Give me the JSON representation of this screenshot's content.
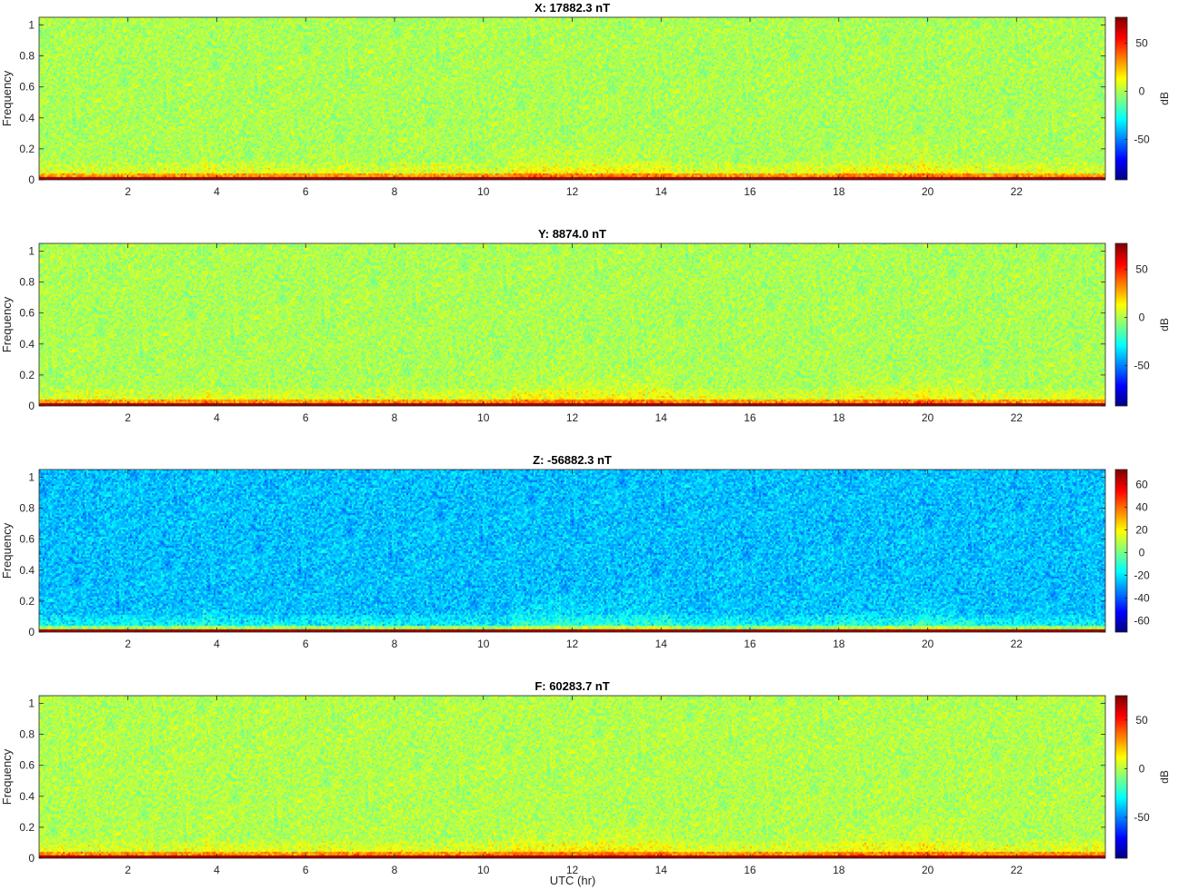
{
  "figure": {
    "xlabel": "UTC (hr)"
  },
  "chart_data": [
    {
      "type": "heatmap",
      "title": "X: 17882.3 nT",
      "ylabel": "Frequency",
      "colorbar_label": "dB",
      "x_ticks": [
        2,
        4,
        6,
        8,
        10,
        12,
        14,
        16,
        18,
        20,
        22
      ],
      "y_ticks": [
        "0",
        "0.2",
        "0.4",
        "0.6",
        "0.8",
        "1"
      ],
      "xlim": [
        0,
        24
      ],
      "ylim": [
        0,
        1.05
      ],
      "colorbar_ticks": [
        "-50",
        "0",
        "50"
      ],
      "clim": [
        -92,
        77
      ],
      "background_level_db": 0,
      "colormap": "jet"
    },
    {
      "type": "heatmap",
      "title": "Y: 8874.0 nT",
      "ylabel": "Frequency",
      "colorbar_label": "dB",
      "x_ticks": [
        2,
        4,
        6,
        8,
        10,
        12,
        14,
        16,
        18,
        20,
        22
      ],
      "y_ticks": [
        "0",
        "0.2",
        "0.4",
        "0.6",
        "0.8",
        "1"
      ],
      "xlim": [
        0,
        24
      ],
      "ylim": [
        0,
        1.05
      ],
      "colorbar_ticks": [
        "-50",
        "0",
        "50"
      ],
      "clim": [
        -92,
        77
      ],
      "background_level_db": 0,
      "colormap": "jet"
    },
    {
      "type": "heatmap",
      "title": "Z: -56882.3 nT",
      "ylabel": "Frequency",
      "colorbar_label": "",
      "x_ticks": [
        2,
        4,
        6,
        8,
        10,
        12,
        14,
        16,
        18,
        20,
        22
      ],
      "y_ticks": [
        "0",
        "0.2",
        "0.4",
        "0.6",
        "0.8",
        "1"
      ],
      "xlim": [
        0,
        24
      ],
      "ylim": [
        0,
        1.05
      ],
      "colorbar_ticks": [
        "-60",
        "-40",
        "-20",
        "0",
        "20",
        "40",
        "60"
      ],
      "clim": [
        -70,
        73
      ],
      "background_level_db": -25,
      "colormap": "jet"
    },
    {
      "type": "heatmap",
      "title": "F: 60283.7 nT",
      "ylabel": "Frequency",
      "colorbar_label": "dB",
      "x_ticks": [
        2,
        4,
        6,
        8,
        10,
        12,
        14,
        16,
        18,
        20,
        22
      ],
      "y_ticks": [
        "0",
        "0.2",
        "0.4",
        "0.6",
        "0.8",
        "1"
      ],
      "xlim": [
        0,
        24
      ],
      "ylim": [
        0,
        1.05
      ],
      "colorbar_ticks": [
        "-50",
        "0",
        "50"
      ],
      "clim": [
        -92,
        75
      ],
      "background_level_db": 0,
      "colormap": "jet"
    }
  ]
}
